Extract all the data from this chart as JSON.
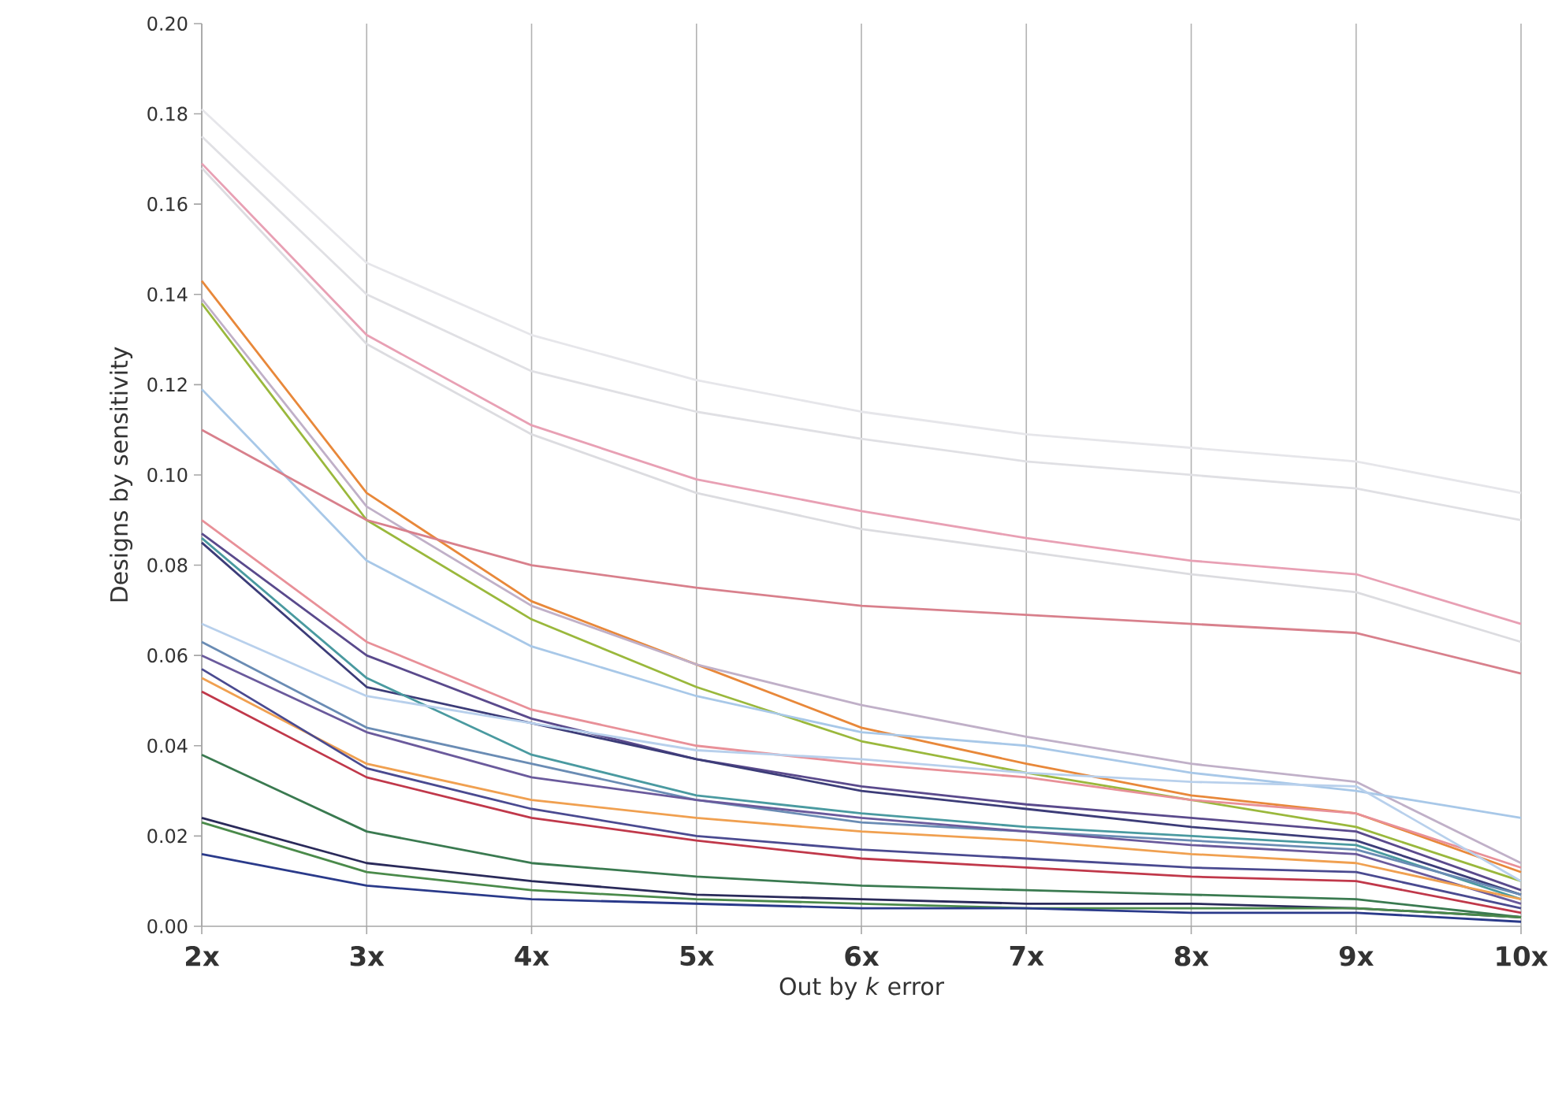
{
  "chart_data": {
    "type": "line",
    "xlabel": "Out by *k* error",
    "ylabel": "Designs by sensitivity",
    "categories": [
      "2x",
      "3x",
      "4x",
      "5x",
      "6x",
      "7x",
      "8x",
      "9x",
      "10x"
    ],
    "ylim": [
      0,
      0.2
    ],
    "yticks": [
      {
        "value": 0,
        "label": "0.00"
      },
      {
        "value": 0.02,
        "label": "0.02"
      },
      {
        "value": 0.04,
        "label": "0.04"
      },
      {
        "value": 0.06,
        "label": "0.06"
      },
      {
        "value": 0.08,
        "label": "0.08"
      },
      {
        "value": 0.1,
        "label": "0.10"
      },
      {
        "value": 0.12,
        "label": "0.12"
      },
      {
        "value": 0.14,
        "label": "0.14"
      },
      {
        "value": 0.16,
        "label": "0.16"
      },
      {
        "value": 0.18,
        "label": "0.18"
      },
      {
        "value": 0.2,
        "label": "0.20"
      }
    ],
    "grid": "x",
    "marker": "none",
    "line_style": "solid",
    "series": [
      {
        "color": "#e6e6ea",
        "values": [
          0.181,
          0.147,
          0.131,
          0.121,
          0.114,
          0.109,
          0.106,
          0.103,
          0.096
        ]
      },
      {
        "color": "#e0e0e4",
        "values": [
          0.175,
          0.14,
          0.123,
          0.114,
          0.108,
          0.103,
          0.1,
          0.097,
          0.09
        ]
      },
      {
        "color": "#e8a0b4",
        "values": [
          0.169,
          0.131,
          0.111,
          0.099,
          0.092,
          0.086,
          0.081,
          0.078,
          0.067
        ]
      },
      {
        "color": "#dcdce0",
        "values": [
          0.168,
          0.129,
          0.109,
          0.096,
          0.088,
          0.083,
          0.078,
          0.074,
          0.063
        ]
      },
      {
        "color": "#e8883a",
        "values": [
          0.143,
          0.096,
          0.072,
          0.058,
          0.044,
          0.036,
          0.029,
          0.025,
          0.012
        ]
      },
      {
        "color": "#c0b0c8",
        "values": [
          0.139,
          0.093,
          0.071,
          0.058,
          0.049,
          0.042,
          0.036,
          0.032,
          0.014
        ]
      },
      {
        "color": "#9ab83c",
        "values": [
          0.138,
          0.09,
          0.068,
          0.053,
          0.041,
          0.034,
          0.028,
          0.022,
          0.01
        ]
      },
      {
        "color": "#a8c8e8",
        "values": [
          0.119,
          0.081,
          0.062,
          0.051,
          0.043,
          0.04,
          0.034,
          0.03,
          0.024
        ]
      },
      {
        "color": "#d8808c",
        "values": [
          0.11,
          0.09,
          0.08,
          0.075,
          0.071,
          0.069,
          0.067,
          0.065,
          0.056
        ]
      },
      {
        "color": "#e89098",
        "values": [
          0.09,
          0.063,
          0.048,
          0.04,
          0.036,
          0.033,
          0.028,
          0.025,
          0.013
        ]
      },
      {
        "color": "#5a4a8c",
        "values": [
          0.087,
          0.06,
          0.046,
          0.037,
          0.031,
          0.027,
          0.024,
          0.021,
          0.008
        ]
      },
      {
        "color": "#3c3c78",
        "values": [
          0.085,
          0.053,
          0.045,
          0.037,
          0.03,
          0.026,
          0.022,
          0.019,
          0.007
        ]
      },
      {
        "color": "#4a9aa0",
        "values": [
          0.086,
          0.055,
          0.038,
          0.029,
          0.025,
          0.022,
          0.02,
          0.018,
          0.006
        ]
      },
      {
        "color": "#b8d0ec",
        "values": [
          0.067,
          0.051,
          0.045,
          0.039,
          0.037,
          0.034,
          0.032,
          0.031,
          0.01
        ]
      },
      {
        "color": "#6a8cb4",
        "values": [
          0.063,
          0.044,
          0.036,
          0.028,
          0.023,
          0.021,
          0.019,
          0.017,
          0.007
        ]
      },
      {
        "color": "#6a5a9c",
        "values": [
          0.06,
          0.043,
          0.033,
          0.028,
          0.024,
          0.021,
          0.018,
          0.016,
          0.005
        ]
      },
      {
        "color": "#f0a050",
        "values": [
          0.055,
          0.036,
          0.028,
          0.024,
          0.021,
          0.019,
          0.016,
          0.014,
          0.006
        ]
      },
      {
        "color": "#4a4a90",
        "values": [
          0.057,
          0.035,
          0.026,
          0.02,
          0.017,
          0.015,
          0.013,
          0.012,
          0.004
        ]
      },
      {
        "color": "#c0384a",
        "values": [
          0.052,
          0.033,
          0.024,
          0.019,
          0.015,
          0.013,
          0.011,
          0.01,
          0.003
        ]
      },
      {
        "color": "#3a7a50",
        "values": [
          0.038,
          0.021,
          0.014,
          0.011,
          0.009,
          0.008,
          0.007,
          0.006,
          0.002
        ]
      },
      {
        "color": "#2a2a5a",
        "values": [
          0.024,
          0.014,
          0.01,
          0.007,
          0.006,
          0.005,
          0.005,
          0.004,
          0.002
        ]
      },
      {
        "color": "#4a8a4a",
        "values": [
          0.023,
          0.012,
          0.008,
          0.006,
          0.005,
          0.004,
          0.004,
          0.004,
          0.002
        ]
      },
      {
        "color": "#2a3a8a",
        "values": [
          0.016,
          0.009,
          0.006,
          0.005,
          0.004,
          0.004,
          0.003,
          0.003,
          0.001
        ]
      }
    ]
  }
}
